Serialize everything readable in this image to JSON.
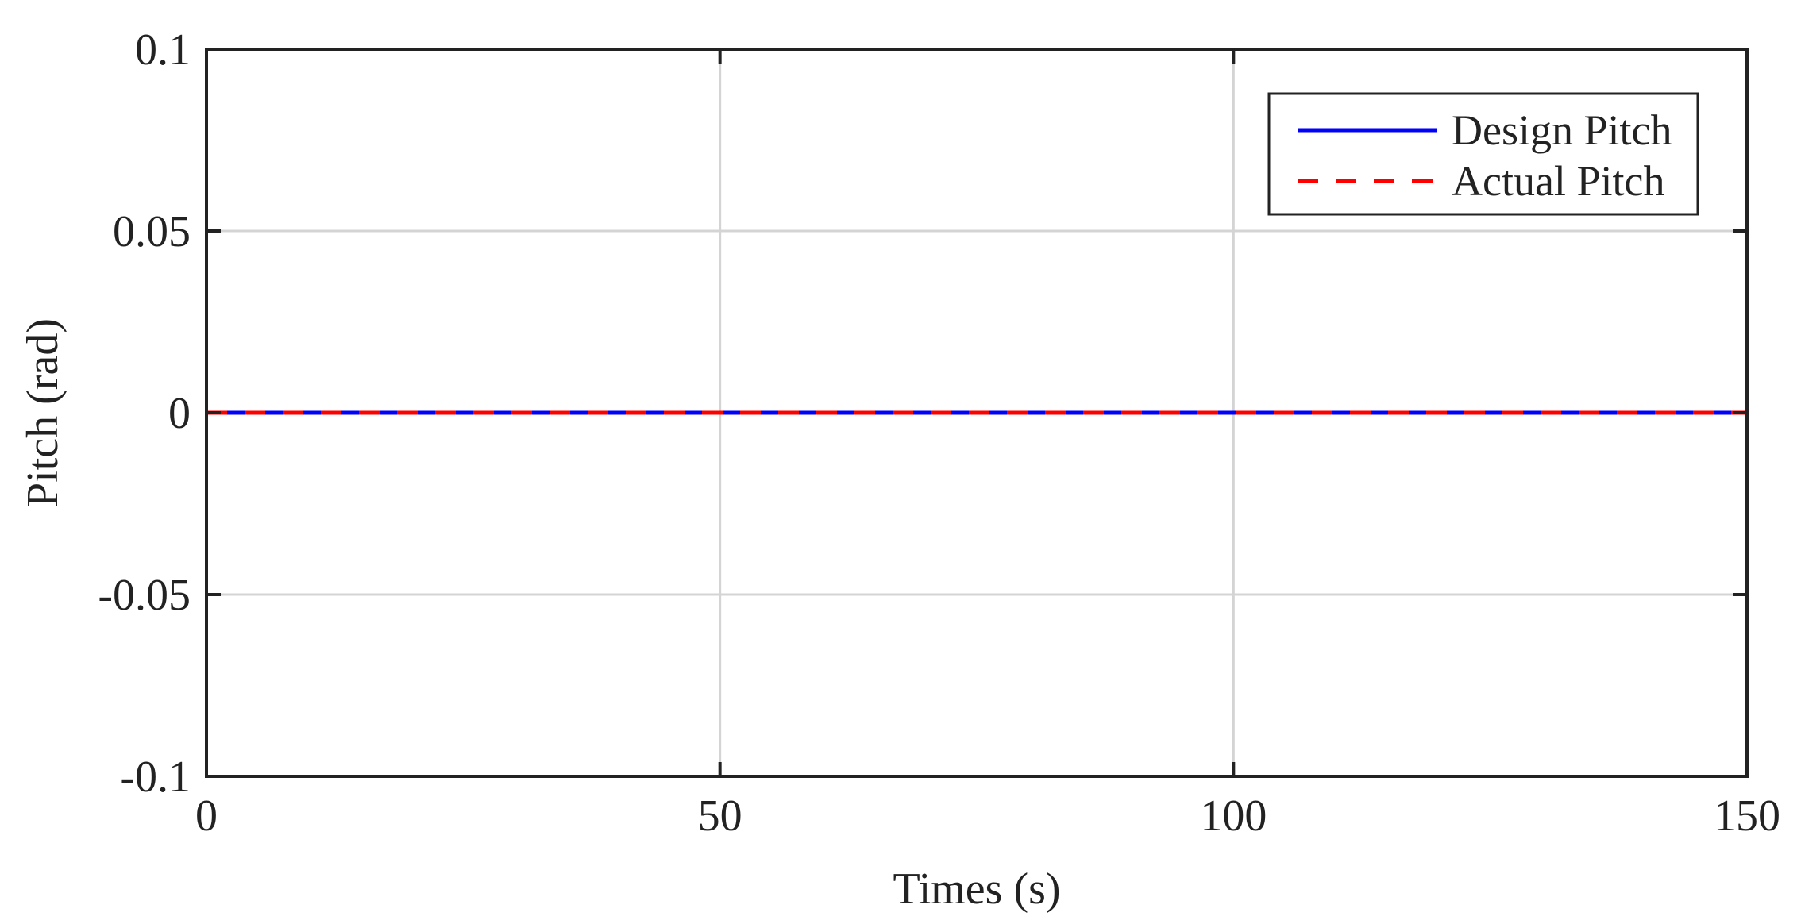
{
  "chart_data": {
    "type": "line",
    "xlabel": "Times (s)",
    "ylabel": "Pitch (rad)",
    "xlim": [
      0,
      150
    ],
    "ylim": [
      -0.1,
      0.1
    ],
    "x_ticks": [
      0,
      50,
      100,
      150
    ],
    "y_ticks": [
      -0.1,
      -0.05,
      0,
      0.05,
      0.1
    ],
    "x_tick_labels": [
      "0",
      "50",
      "100",
      "150"
    ],
    "y_tick_labels": [
      "-0.1",
      "-0.05",
      "0",
      "0.05",
      "0.1"
    ],
    "grid": true,
    "legend_position": "top-right",
    "series": [
      {
        "name": "Design Pitch",
        "color": "#0000ff",
        "style": "solid",
        "x": [
          0,
          150
        ],
        "y": [
          0,
          0
        ]
      },
      {
        "name": "Actual Pitch",
        "color": "#ff0000",
        "style": "dashed",
        "x": [
          0,
          150
        ],
        "y": [
          0,
          0
        ]
      }
    ]
  }
}
